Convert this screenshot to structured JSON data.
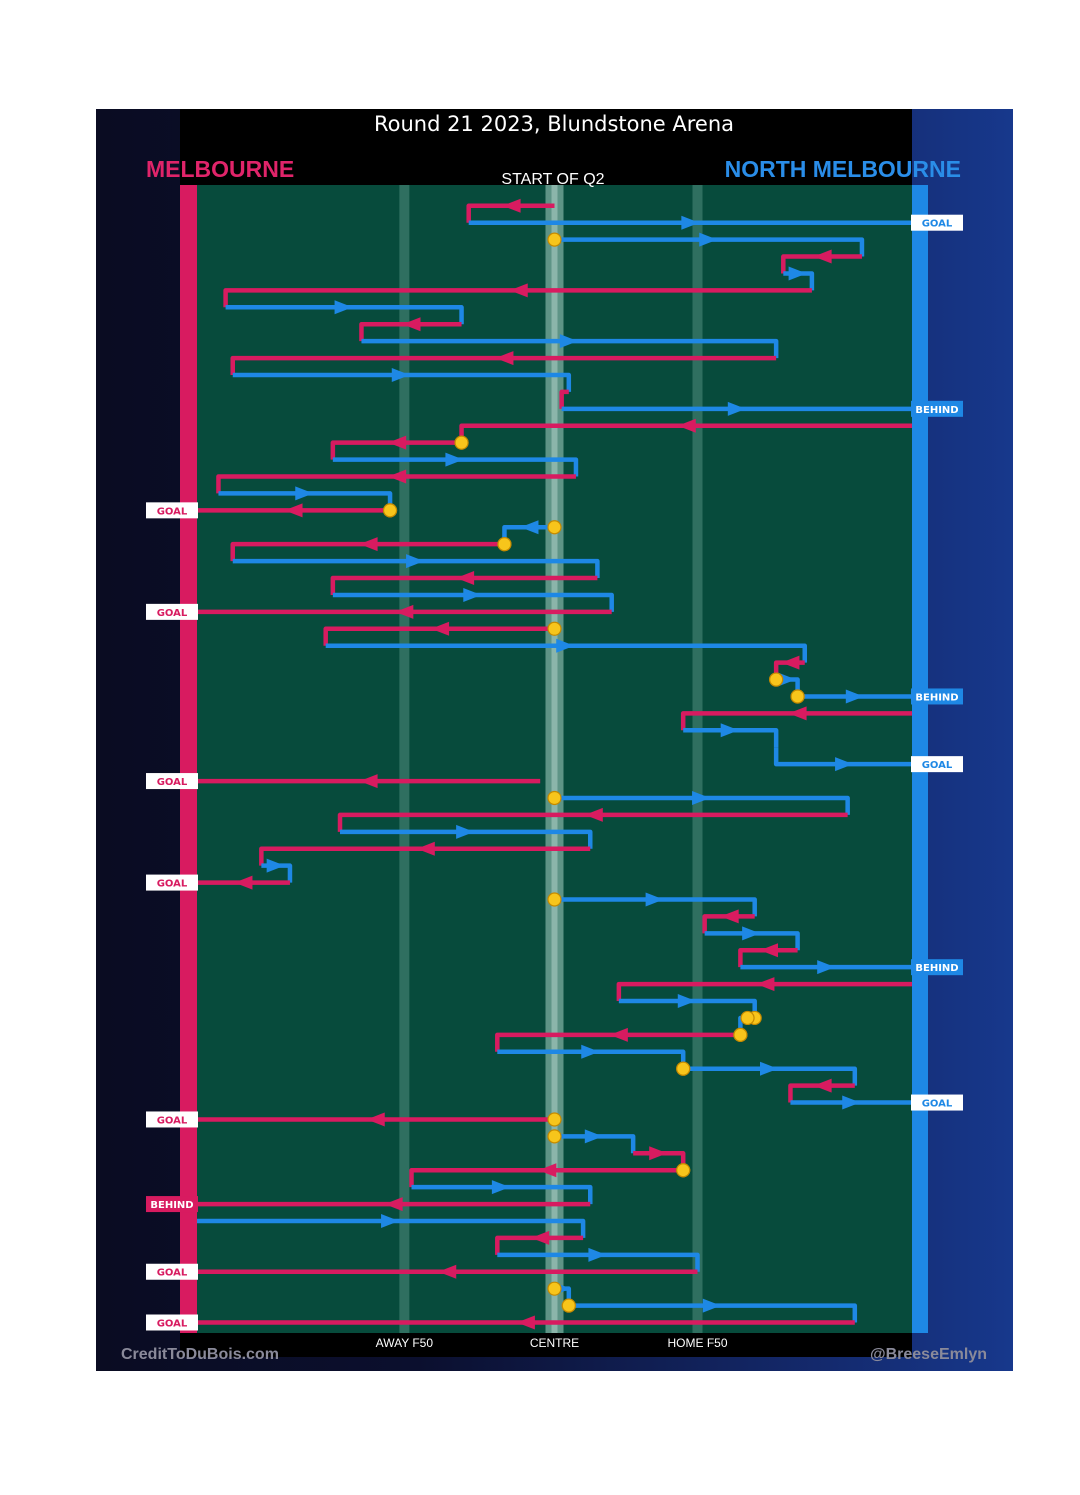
{
  "chart_data": {
    "type": "flow",
    "title": "Round 21 2023, Blundstone Arena",
    "subtitle": "START OF Q2",
    "teams": {
      "away": "MELBOURNE",
      "home": "NORTH MELBOURNE"
    },
    "x_axis": {
      "range": [
        0,
        100
      ],
      "ticks": [
        {
          "value": 29,
          "label": "AWAY F50"
        },
        {
          "value": 50,
          "label": "CENTRE"
        },
        {
          "value": 70,
          "label": "HOME F50"
        }
      ]
    },
    "colors": {
      "melbourne": "#d81b60",
      "north": "#1e88e5",
      "field": "#074b3c",
      "stoppage": "#f7c51b"
    },
    "credits": {
      "left": "CreditToDuBois.com",
      "right": "@BreeseEmlyn"
    },
    "events": [
      {
        "team": "M",
        "pts": [
          [
            50,
            0.2
          ],
          [
            38,
            0.2
          ],
          [
            38,
            1.2
          ]
        ]
      },
      {
        "team": "N",
        "pts": [
          [
            38,
            1.2
          ],
          [
            100,
            1.2
          ]
        ],
        "outcome": "GOAL"
      },
      {
        "team": "N",
        "pts": [
          [
            50,
            2.2
          ],
          [
            93,
            2.2
          ],
          [
            93,
            3.2
          ]
        ],
        "start_stop": true
      },
      {
        "team": "M",
        "pts": [
          [
            93,
            3.2
          ],
          [
            82,
            3.2
          ],
          [
            82,
            4.2
          ]
        ]
      },
      {
        "team": "N",
        "pts": [
          [
            82,
            4.2
          ],
          [
            86,
            4.2
          ],
          [
            86,
            5.2
          ]
        ]
      },
      {
        "team": "M",
        "pts": [
          [
            86,
            5.2
          ],
          [
            4,
            5.2
          ],
          [
            4,
            6.2
          ]
        ]
      },
      {
        "team": "N",
        "pts": [
          [
            4,
            6.2
          ],
          [
            37,
            6.2
          ],
          [
            37,
            7.2
          ]
        ]
      },
      {
        "team": "M",
        "pts": [
          [
            37,
            7.2
          ],
          [
            23,
            7.2
          ],
          [
            23,
            8.2
          ]
        ]
      },
      {
        "team": "N",
        "pts": [
          [
            23,
            8.2
          ],
          [
            81,
            8.2
          ],
          [
            81,
            9.2
          ]
        ]
      },
      {
        "team": "M",
        "pts": [
          [
            81,
            9.2
          ],
          [
            5,
            9.2
          ],
          [
            5,
            10.2
          ]
        ]
      },
      {
        "team": "N",
        "pts": [
          [
            5,
            10.2
          ],
          [
            52,
            10.2
          ],
          [
            52,
            11.2
          ]
        ]
      },
      {
        "team": "M",
        "pts": [
          [
            52,
            11.2
          ],
          [
            51,
            11.2
          ],
          [
            51,
            12.2
          ]
        ]
      },
      {
        "team": "N",
        "pts": [
          [
            51,
            12.2
          ],
          [
            100,
            12.2
          ]
        ],
        "outcome": "BEHIND"
      },
      {
        "team": "M",
        "pts": [
          [
            100,
            13.2
          ],
          [
            37,
            13.2
          ],
          [
            37,
            14.2
          ]
        ],
        "end_stop": true
      },
      {
        "team": "M",
        "pts": [
          [
            37,
            14.2
          ],
          [
            19,
            14.2
          ],
          [
            19,
            15.2
          ]
        ],
        "start_stop": true
      },
      {
        "team": "N",
        "pts": [
          [
            19,
            15.2
          ],
          [
            53,
            15.2
          ],
          [
            53,
            16.2
          ]
        ]
      },
      {
        "team": "M",
        "pts": [
          [
            53,
            16.2
          ],
          [
            3,
            16.2
          ],
          [
            3,
            17.2
          ]
        ]
      },
      {
        "team": "N",
        "pts": [
          [
            3,
            17.2
          ],
          [
            27,
            17.2
          ],
          [
            27,
            18.2
          ]
        ],
        "end_stop": true
      },
      {
        "team": "M",
        "pts": [
          [
            27,
            18.2
          ],
          [
            0,
            18.2
          ]
        ],
        "start_stop": true,
        "outcome": "GOAL"
      },
      {
        "team": "N",
        "pts": [
          [
            50,
            19.2
          ],
          [
            43,
            19.2
          ],
          [
            43,
            20.2
          ]
        ],
        "start_stop": true,
        "end_stop": true
      },
      {
        "team": "M",
        "pts": [
          [
            43,
            20.2
          ],
          [
            5,
            20.2
          ],
          [
            5,
            21.2
          ]
        ],
        "start_stop": true
      },
      {
        "team": "N",
        "pts": [
          [
            5,
            21.2
          ],
          [
            56,
            21.2
          ],
          [
            56,
            22.2
          ]
        ]
      },
      {
        "team": "M",
        "pts": [
          [
            56,
            22.2
          ],
          [
            19,
            22.2
          ],
          [
            19,
            23.2
          ]
        ]
      },
      {
        "team": "N",
        "pts": [
          [
            19,
            23.2
          ],
          [
            58,
            23.2
          ],
          [
            58,
            24.2
          ]
        ]
      },
      {
        "team": "M",
        "pts": [
          [
            58,
            24.2
          ],
          [
            0,
            24.2
          ]
        ],
        "outcome": "GOAL"
      },
      {
        "team": "M",
        "pts": [
          [
            50,
            25.2
          ],
          [
            18,
            25.2
          ],
          [
            18,
            26.2
          ]
        ],
        "start_stop": true
      },
      {
        "team": "N",
        "pts": [
          [
            18,
            26.2
          ],
          [
            85,
            26.2
          ],
          [
            85,
            27.2
          ]
        ]
      },
      {
        "team": "M",
        "pts": [
          [
            85,
            27.2
          ],
          [
            81,
            27.2
          ],
          [
            81,
            28.2
          ]
        ],
        "end_stop": true
      },
      {
        "team": "N",
        "pts": [
          [
            81,
            28.2
          ],
          [
            84,
            28.2
          ],
          [
            84,
            29.2
          ]
        ],
        "start_stop": true,
        "end_stop": true
      },
      {
        "team": "N",
        "pts": [
          [
            84,
            29.2
          ],
          [
            100,
            29.2
          ]
        ],
        "start_stop": true,
        "outcome": "BEHIND"
      },
      {
        "team": "M",
        "pts": [
          [
            100,
            30.2
          ],
          [
            68,
            30.2
          ],
          [
            68,
            31.2
          ]
        ]
      },
      {
        "team": "N",
        "pts": [
          [
            68,
            31.2
          ],
          [
            81,
            31.2
          ],
          [
            81,
            32.2
          ]
        ]
      },
      {
        "team": "N",
        "pts": [
          [
            81,
            32.2
          ],
          [
            81,
            33.2
          ],
          [
            100,
            33.2
          ]
        ],
        "outcome": "GOAL"
      },
      {
        "team": "M",
        "pts": [
          [
            48,
            34.2
          ],
          [
            0,
            34.2
          ]
        ],
        "outcome": "GOAL"
      },
      {
        "team": "N",
        "pts": [
          [
            50,
            35.2
          ],
          [
            91,
            35.2
          ],
          [
            91,
            36.2
          ]
        ],
        "start_stop": true
      },
      {
        "team": "M",
        "pts": [
          [
            91,
            36.2
          ],
          [
            20,
            36.2
          ],
          [
            20,
            37.2
          ]
        ]
      },
      {
        "team": "N",
        "pts": [
          [
            20,
            37.2
          ],
          [
            55,
            37.2
          ],
          [
            55,
            38.2
          ]
        ]
      },
      {
        "team": "M",
        "pts": [
          [
            55,
            38.2
          ],
          [
            9,
            38.2
          ],
          [
            9,
            39.2
          ]
        ]
      },
      {
        "team": "N",
        "pts": [
          [
            9,
            39.2
          ],
          [
            13,
            39.2
          ],
          [
            13,
            40.2
          ]
        ]
      },
      {
        "team": "M",
        "pts": [
          [
            13,
            40.2
          ],
          [
            0,
            40.2
          ]
        ],
        "outcome": "GOAL"
      },
      {
        "team": "N",
        "pts": [
          [
            50,
            41.2
          ],
          [
            78,
            41.2
          ],
          [
            78,
            42.2
          ]
        ],
        "start_stop": true
      },
      {
        "team": "M",
        "pts": [
          [
            78,
            42.2
          ],
          [
            71,
            42.2
          ],
          [
            71,
            43.2
          ]
        ]
      },
      {
        "team": "N",
        "pts": [
          [
            71,
            43.2
          ],
          [
            84,
            43.2
          ],
          [
            84,
            44.2
          ]
        ]
      },
      {
        "team": "M",
        "pts": [
          [
            84,
            44.2
          ],
          [
            76,
            44.2
          ],
          [
            76,
            45.2
          ]
        ]
      },
      {
        "team": "N",
        "pts": [
          [
            76,
            45.2
          ],
          [
            100,
            45.2
          ]
        ],
        "outcome": "BEHIND"
      },
      {
        "team": "M",
        "pts": [
          [
            100,
            46.2
          ],
          [
            59,
            46.2
          ],
          [
            59,
            47.2
          ]
        ]
      },
      {
        "team": "N",
        "pts": [
          [
            59,
            47.2
          ],
          [
            78,
            47.2
          ],
          [
            78,
            48.2
          ]
        ],
        "end_stop": true
      },
      {
        "team": "N",
        "pts": [
          [
            77,
            48.2
          ],
          [
            76,
            48.2
          ],
          [
            76,
            49.2
          ]
        ],
        "start_stop": true,
        "end_stop": true
      },
      {
        "team": "M",
        "pts": [
          [
            76,
            49.2
          ],
          [
            42,
            49.2
          ],
          [
            42,
            50.2
          ]
        ],
        "start_stop": true
      },
      {
        "team": "N",
        "pts": [
          [
            42,
            50.2
          ],
          [
            68,
            50.2
          ],
          [
            68,
            51.2
          ]
        ],
        "end_stop": true
      },
      {
        "team": "N",
        "pts": [
          [
            68,
            51.2
          ],
          [
            92,
            51.2
          ],
          [
            92,
            52.2
          ]
        ],
        "start_stop": true
      },
      {
        "team": "M",
        "pts": [
          [
            92,
            52.2
          ],
          [
            83,
            52.2
          ],
          [
            83,
            53.2
          ]
        ]
      },
      {
        "team": "N",
        "pts": [
          [
            83,
            53.2
          ],
          [
            100,
            53.2
          ]
        ],
        "outcome": "GOAL"
      },
      {
        "team": "M",
        "pts": [
          [
            50,
            54.2
          ],
          [
            0,
            54.2
          ]
        ],
        "start_stop": true,
        "outcome": "GOAL"
      },
      {
        "team": "N",
        "pts": [
          [
            50,
            55.2
          ],
          [
            61,
            55.2
          ],
          [
            61,
            56.2
          ]
        ],
        "start_stop": true
      },
      {
        "team": "M",
        "pts": [
          [
            61,
            56.2
          ],
          [
            68,
            56.2
          ],
          [
            68,
            57.2
          ]
        ],
        "end_stop": true
      },
      {
        "team": "M",
        "pts": [
          [
            68,
            57.2
          ],
          [
            30,
            57.2
          ],
          [
            30,
            58.2
          ]
        ],
        "start_stop": true
      },
      {
        "team": "N",
        "pts": [
          [
            30,
            58.2
          ],
          [
            55,
            58.2
          ],
          [
            55,
            59.2
          ]
        ]
      },
      {
        "team": "M",
        "pts": [
          [
            55,
            59.2
          ],
          [
            0,
            59.2
          ]
        ],
        "outcome": "BEHIND"
      },
      {
        "team": "N",
        "pts": [
          [
            0,
            60.2
          ],
          [
            54,
            60.2
          ],
          [
            54,
            61.2
          ]
        ]
      },
      {
        "team": "M",
        "pts": [
          [
            54,
            61.2
          ],
          [
            42,
            61.2
          ],
          [
            42,
            62.2
          ]
        ]
      },
      {
        "team": "N",
        "pts": [
          [
            42,
            62.2
          ],
          [
            70,
            62.2
          ],
          [
            70,
            63.2
          ]
        ]
      },
      {
        "team": "M",
        "pts": [
          [
            70,
            63.2
          ],
          [
            0,
            63.2
          ]
        ],
        "outcome": "GOAL"
      },
      {
        "team": "N",
        "pts": [
          [
            50,
            64.2
          ],
          [
            52,
            64.2
          ],
          [
            52,
            65.2
          ]
        ],
        "start_stop": true,
        "end_stop": true
      },
      {
        "team": "N",
        "pts": [
          [
            52,
            65.2
          ],
          [
            92,
            65.2
          ],
          [
            92,
            66.2
          ]
        ],
        "start_stop": true
      },
      {
        "team": "M",
        "pts": [
          [
            92,
            66.2
          ],
          [
            0,
            66.2
          ]
        ],
        "outcome": "GOAL"
      }
    ]
  }
}
